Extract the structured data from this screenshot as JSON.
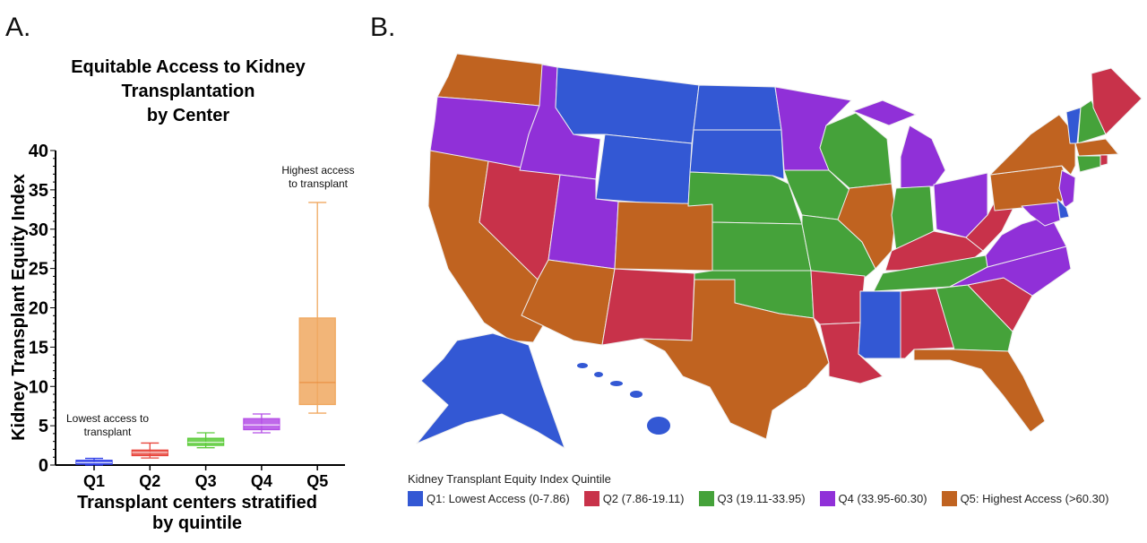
{
  "panels": {
    "a": "A.",
    "b": "B."
  },
  "chart_data": [
    {
      "type": "box",
      "title_lines": [
        "Equitable Access to Kidney",
        "Transplantation",
        "by Center"
      ],
      "xlabel_lines": [
        "Transplant centers stratified",
        "by quintile"
      ],
      "ylabel": "Kidney Transplant Equity Index",
      "ylim": [
        0,
        40
      ],
      "yticks": [
        0,
        5,
        10,
        15,
        20,
        25,
        30,
        35,
        40
      ],
      "categories": [
        "Q1",
        "Q2",
        "Q3",
        "Q4",
        "Q5"
      ],
      "colors": [
        "#2f3fe8",
        "#e8453c",
        "#5ccb3a",
        "#b44ee6",
        "#f0a860"
      ],
      "boxes": [
        {
          "min": 0.0,
          "q1": 0.1,
          "median": 0.3,
          "q3": 0.6,
          "max": 0.85
        },
        {
          "min": 0.9,
          "q1": 1.2,
          "median": 1.6,
          "q3": 1.9,
          "max": 2.8
        },
        {
          "min": 2.2,
          "q1": 2.5,
          "median": 2.9,
          "q3": 3.4,
          "max": 4.1
        },
        {
          "min": 4.1,
          "q1": 4.5,
          "median": 5.1,
          "q3": 5.9,
          "max": 6.5
        },
        {
          "min": 6.6,
          "q1": 7.7,
          "median": 10.5,
          "q3": 18.7,
          "max": 33.4
        }
      ],
      "annotations": {
        "low": [
          "Lowest access to",
          "transplant"
        ],
        "high": [
          "Highest access",
          "to transplant"
        ]
      }
    },
    {
      "type": "choropleth",
      "legend_title": "Kidney Transplant Equity Index Quintile",
      "legend": [
        {
          "label": "Q1: Lowest Access (0-7.86)",
          "color": "#3358d4"
        },
        {
          "label": "Q2 (7.86-19.11)",
          "color": "#c8324a"
        },
        {
          "label": "Q3 (19.11-33.95)",
          "color": "#45a23a"
        },
        {
          "label": "Q4 (33.95-60.30)",
          "color": "#9030d8"
        },
        {
          "label": "Q5: Highest Access (>60.30)",
          "color": "#c06320"
        }
      ],
      "regions": {
        "MT": 1,
        "WY": 1,
        "ND": 1,
        "SD": 1,
        "MS": 1,
        "AK": 1,
        "HI": 1,
        "VT": 1,
        "DE": 1,
        "NV": 2,
        "NM": 2,
        "AR": 2,
        "LA": 2,
        "AL": 2,
        "KY": 2,
        "WV": 2,
        "SC": 2,
        "ME": 2,
        "RI": 2,
        "NE": 3,
        "KS": 3,
        "OK": 3,
        "IA": 3,
        "MO": 3,
        "WI": 3,
        "IN": 3,
        "TN": 3,
        "GA": 3,
        "NH": 3,
        "CT": 3,
        "OR": 4,
        "ID": 4,
        "UT": 4,
        "MN": 4,
        "MI": 4,
        "OH": 4,
        "VA": 4,
        "NC": 4,
        "NJ": 4,
        "MD": 4,
        "WA": 5,
        "CA": 5,
        "AZ": 5,
        "CO": 5,
        "TX": 5,
        "IL": 5,
        "FL": 5,
        "NY": 5,
        "PA": 5,
        "MA": 5
      }
    }
  ]
}
